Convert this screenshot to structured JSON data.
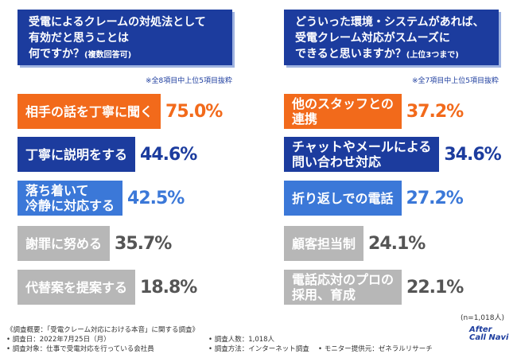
{
  "panels": [
    {
      "title": [
        "受電によるクレームの対処法として",
        "有効だと思うことは",
        "何ですか？"
      ],
      "title_note": "(複数回答可)",
      "note": "※全8項目中上位5項目抜粋",
      "items": [
        {
          "label": [
            "相手の話を丁寧に聞く"
          ],
          "value": "75.0%",
          "color": "#f26a1b",
          "value_color": "#f26a1b"
        },
        {
          "label": [
            "丁寧に説明をする"
          ],
          "value": "44.6%",
          "color": "#1c3c9e",
          "value_color": "#1c3c9e"
        },
        {
          "label": [
            "落ち着いて",
            "冷静に対応する"
          ],
          "value": "42.5%",
          "color": "#3b78d8",
          "value_color": "#3b78d8"
        },
        {
          "label": [
            "謝罪に努める"
          ],
          "value": "35.7%",
          "color": "#b7b7b7",
          "value_color": "#555555"
        },
        {
          "label": [
            "代替案を提案する"
          ],
          "value": "18.8%",
          "color": "#b7b7b7",
          "value_color": "#555555"
        }
      ]
    },
    {
      "title": [
        "どういった環境・システムがあれば、",
        "受電クレーム対応がスムーズに",
        "できると思いますか？"
      ],
      "title_note": "(上位3つまで)",
      "note": "※全7項目中上位5項目抜粋",
      "items": [
        {
          "label": [
            "他のスタッフとの",
            "連携"
          ],
          "value": "37.2%",
          "color": "#f26a1b",
          "value_color": "#f26a1b"
        },
        {
          "label": [
            "チャットやメールによる",
            "問い合わせ対応"
          ],
          "value": "34.6%",
          "color": "#1c3c9e",
          "value_color": "#1c3c9e"
        },
        {
          "label": [
            "折り返しでの電話"
          ],
          "value": "27.2%",
          "color": "#3b78d8",
          "value_color": "#3b78d8"
        },
        {
          "label": [
            "顧客担当制"
          ],
          "value": "24.1%",
          "color": "#b7b7b7",
          "value_color": "#555555"
        },
        {
          "label": [
            "電話応対のプロの",
            "採用、育成"
          ],
          "value": "22.1%",
          "color": "#b7b7b7",
          "value_color": "#555555"
        }
      ]
    }
  ],
  "sample": "(n=1,018人)",
  "footer": [
    "《調査概要：「受電クレーム対応における本音」に関する調査》",
    "• 調査日：2022年7月25日（月）",
    "• 調査対象：仕事で受電対応を行っている会社員",
    "• 調査人数：1,018人",
    "• 調査方法：インターネット調査",
    "• モニター提供元：ゼネラルリサーチ"
  ],
  "logo": "After Call Navi"
}
